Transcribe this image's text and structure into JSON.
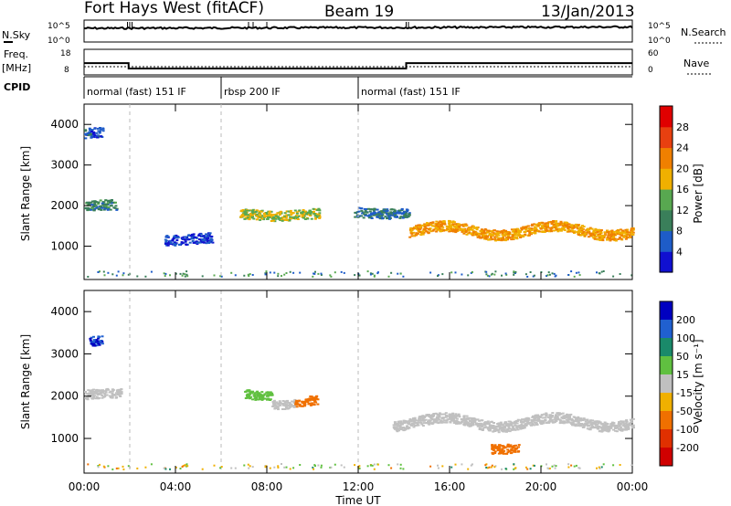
{
  "header": {
    "station": "Fort Hays West (fitACF)",
    "beam": "Beam 19",
    "date": "13/Jan/2013"
  },
  "noise_panel": {
    "left_label": "N.Sky",
    "right_label": "N.Search",
    "left_ticks": [
      "10^5",
      "10^0"
    ],
    "right_ticks": [
      "10^5",
      "10^0"
    ]
  },
  "freq_panel": {
    "left_label_1": "Freq.",
    "left_label_2": "[MHz]",
    "right_label": "Nave",
    "left_ticks": [
      "18",
      "8"
    ],
    "right_ticks": [
      "60",
      "0"
    ],
    "freq_steps": [
      {
        "from_hour": 0,
        "to_hour": 1.95,
        "value": 12.5
      },
      {
        "from_hour": 1.95,
        "to_hour": 14.1,
        "value": 10.0
      },
      {
        "from_hour": 14.1,
        "to_hour": 24,
        "value": 12.5
      }
    ]
  },
  "cpid": {
    "label": "CPID",
    "segments": [
      {
        "text": "normal (fast) 151 IF",
        "start_hour": 0
      },
      {
        "text": "rbsp 200 IF",
        "start_hour": 6
      },
      {
        "text": "normal (fast) 151 IF",
        "start_hour": 12
      }
    ]
  },
  "x_axis": {
    "title": "Time UT",
    "ticks": [
      "00:00",
      "04:00",
      "08:00",
      "12:00",
      "16:00",
      "20:00",
      "00:00"
    ],
    "range_hours": [
      0,
      24
    ]
  },
  "y_axis": {
    "title": "Slant Range [km]",
    "ticks": [
      "1000",
      "2000",
      "3000",
      "4000"
    ],
    "range_km": [
      180,
      4500
    ]
  },
  "power_colorbar": {
    "title": "Power [dB]",
    "ticks": [
      "28",
      "24",
      "20",
      "16",
      "12",
      "8",
      "4"
    ],
    "colors": [
      "#1010d0",
      "#1e5cc8",
      "#3a7f5a",
      "#58a850",
      "#f0b000",
      "#f08000",
      "#e84010",
      "#e00000"
    ]
  },
  "velocity_colorbar": {
    "title": "Velocity [m s⁻¹]",
    "ticks": [
      "200",
      "100",
      "50",
      "15",
      "-15",
      "-50",
      "-100",
      "-200"
    ],
    "colors": [
      "#0000c0",
      "#2060d0",
      "#1a8a6a",
      "#60c040",
      "#c0c0c0",
      "#f0b000",
      "#f07000",
      "#e03000",
      "#d00000"
    ]
  },
  "chart_data": {
    "type": "heatmap",
    "panels": [
      {
        "name": "Power",
        "units": "dB",
        "features": [
          {
            "time_start": 0.0,
            "time_end": 0.8,
            "range_km": 3800,
            "power_db": 6
          },
          {
            "time_start": 0.0,
            "time_end": 1.4,
            "range_km": 2000,
            "power_db": 10
          },
          {
            "time_start": 3.5,
            "time_end": 5.6,
            "range_km": 1200,
            "power_db": 4
          },
          {
            "time_start": 6.8,
            "time_end": 10.3,
            "range_km": 1800,
            "power_db": 16
          },
          {
            "time_start": 11.8,
            "time_end": 14.2,
            "range_km": 1850,
            "power_db": 8
          },
          {
            "time_start": 14.2,
            "time_end": 24.0,
            "range_km": 1400,
            "power_db": 20
          }
        ]
      },
      {
        "name": "Velocity",
        "units": "m s-1",
        "features": [
          {
            "time_start": 0.2,
            "time_end": 0.8,
            "range_km": 3300,
            "velocity": 200
          },
          {
            "time_start": 0.0,
            "time_end": 1.6,
            "range_km": 2050,
            "velocity": 0
          },
          {
            "time_start": 7.0,
            "time_end": 8.2,
            "range_km": 2050,
            "velocity": 40
          },
          {
            "time_start": 8.2,
            "time_end": 9.2,
            "range_km": 1850,
            "velocity": 0
          },
          {
            "time_start": 9.2,
            "time_end": 10.2,
            "range_km": 1900,
            "velocity": -60
          },
          {
            "time_start": 13.5,
            "time_end": 24.0,
            "range_km": 1400,
            "velocity": 0
          },
          {
            "time_start": 17.8,
            "time_end": 19.0,
            "range_km": 800,
            "velocity": -60
          }
        ]
      }
    ]
  }
}
